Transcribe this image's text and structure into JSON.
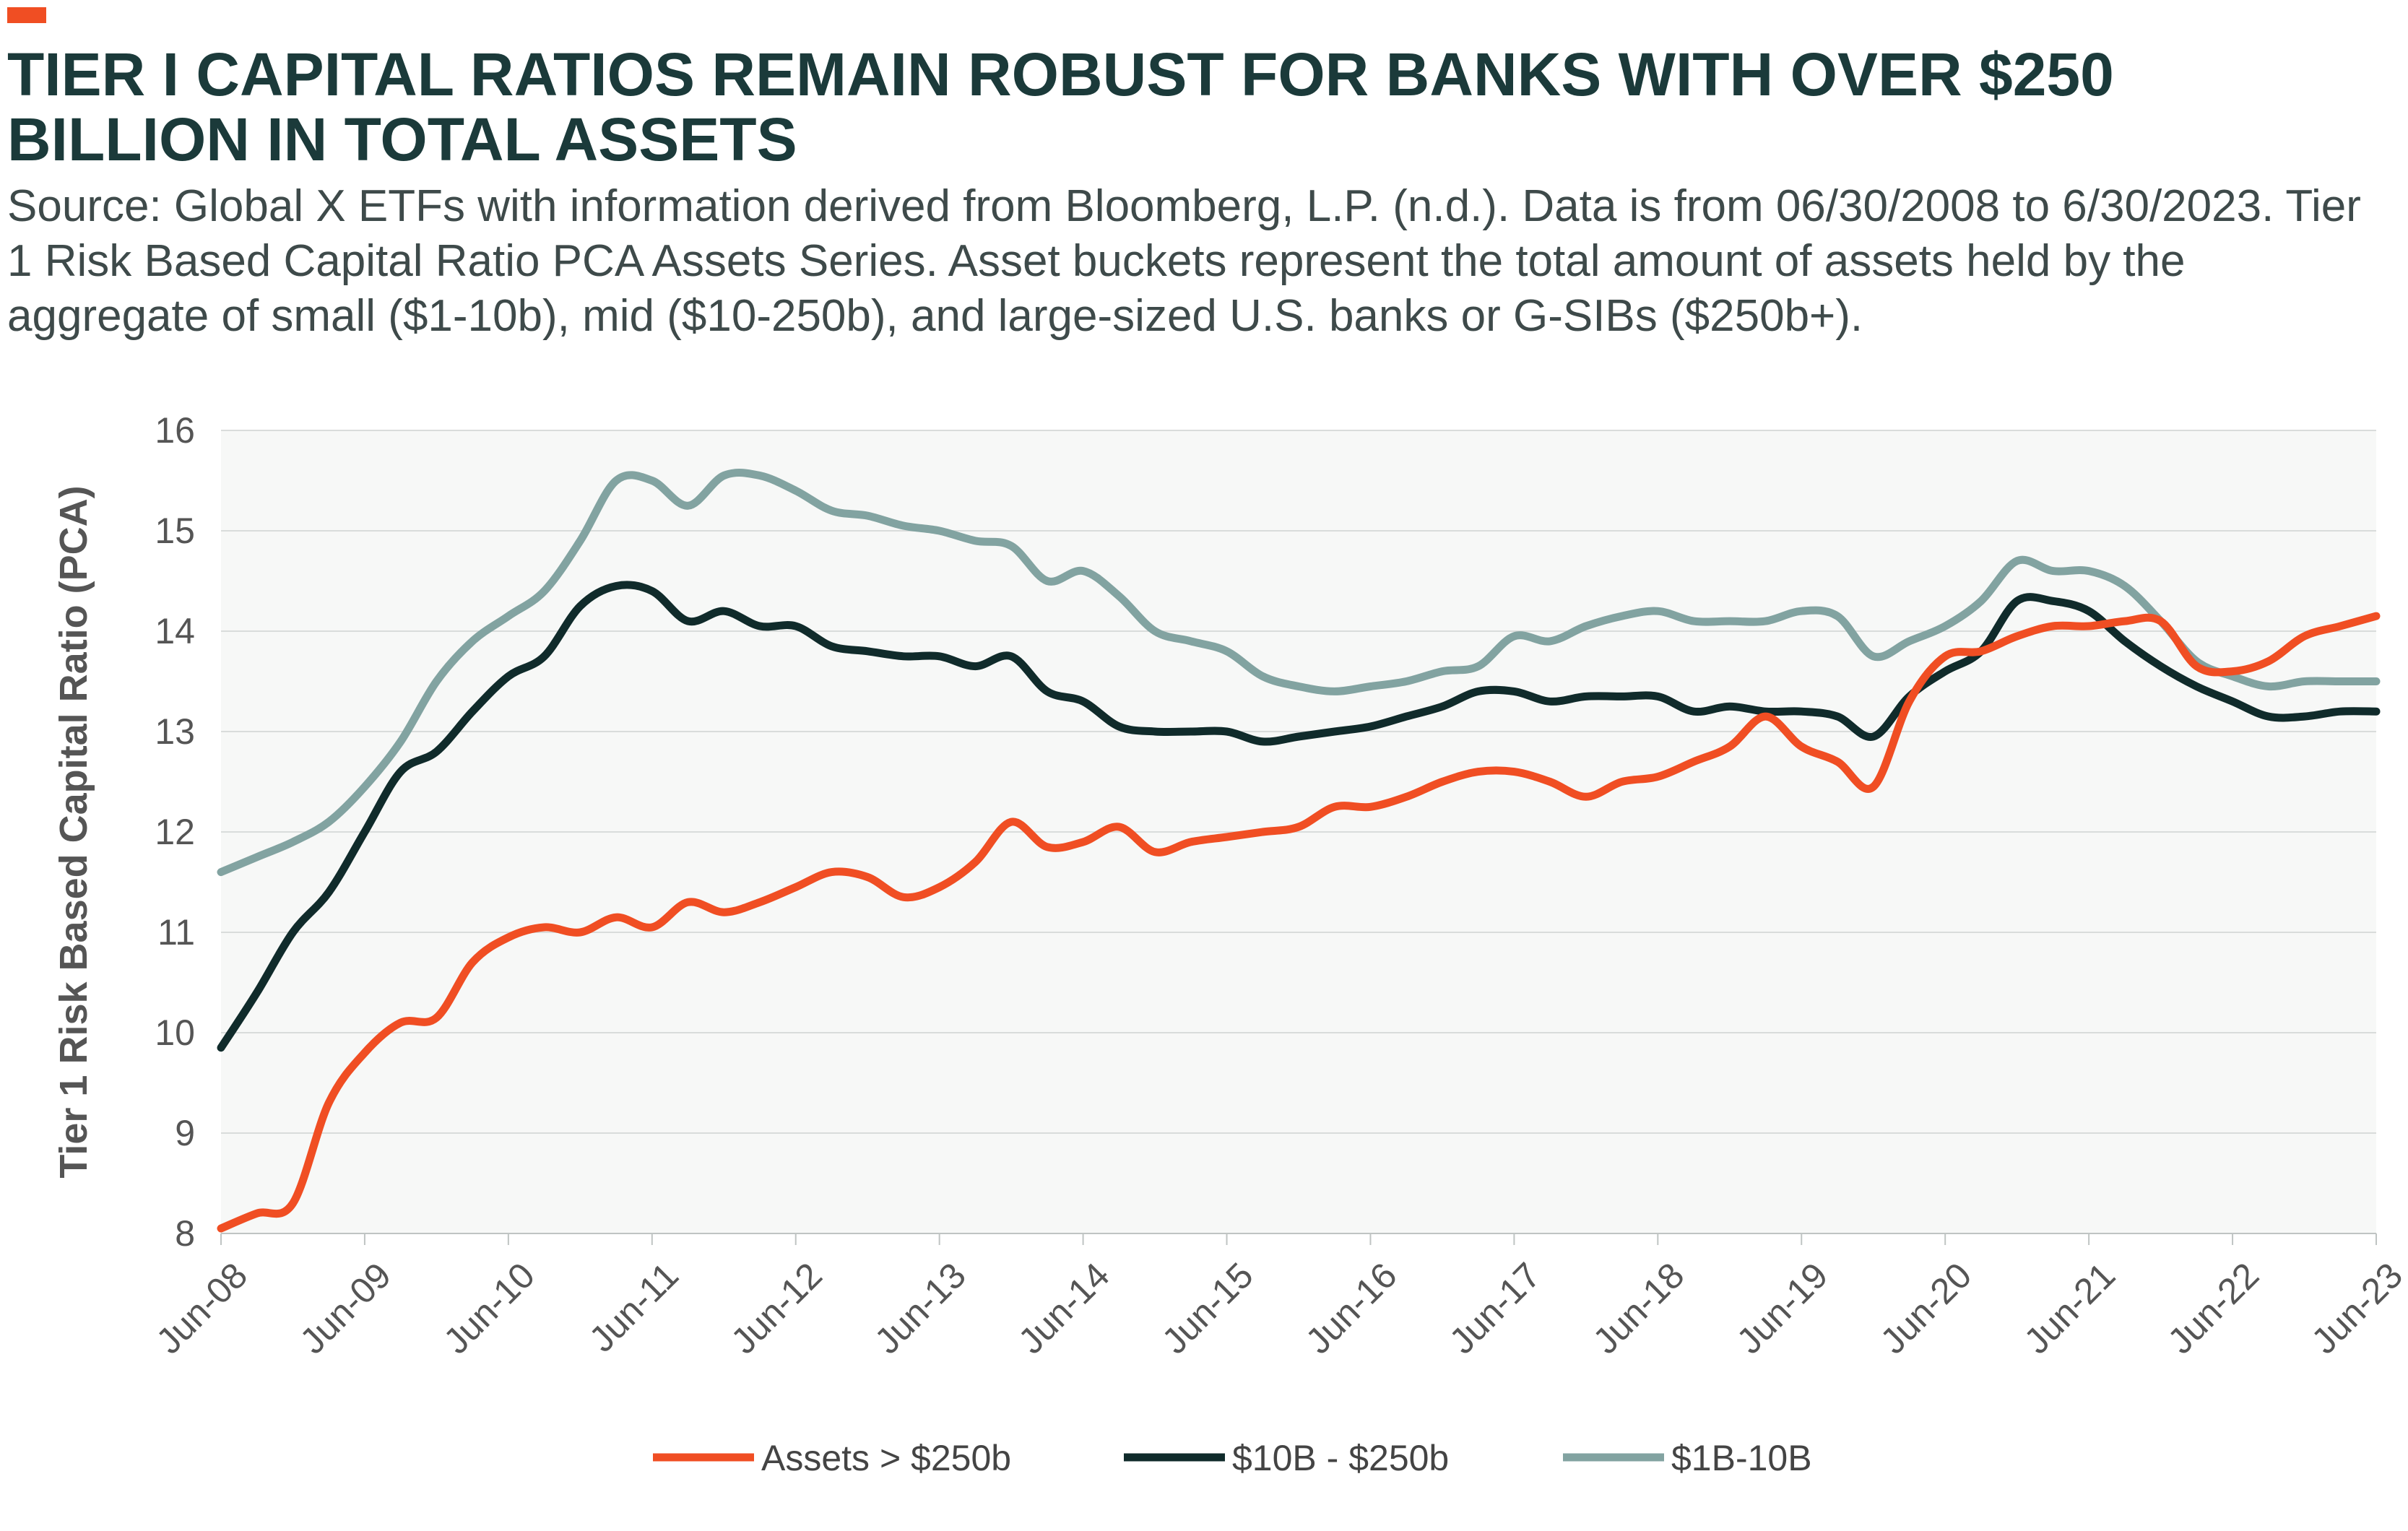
{
  "header": {
    "title": "TIER I CAPITAL RATIOS REMAIN ROBUST FOR BANKS WITH OVER $250 BILLION IN TOTAL ASSETS",
    "subtitle": "Source: Global X ETFs with information derived from Bloomberg, L.P. (n.d.). Data is from 06/30/2008 to 6/30/2023. Tier 1 Risk Based Capital Ratio PCA Assets Series. Asset buckets represent the total amount of assets held by the aggregate of small ($1-10b), mid ($10-250b), and large-sized U.S. banks or G-SIBs ($250b+)."
  },
  "colors": {
    "accent": "#f04e23",
    "plot_background": "#f7f8f7",
    "grid": "#d9dcdb"
  },
  "chart_data": {
    "type": "line",
    "ylabel": "Tier 1 Risk Based Capital Ratio (PCA)",
    "xlabel": "",
    "ylim": [
      8,
      16
    ],
    "yticks": [
      "8",
      "9",
      "10",
      "11",
      "12",
      "13",
      "14",
      "15",
      "16"
    ],
    "xlim": [
      "2008-06",
      "2023-06"
    ],
    "xticks": [
      "Jun-08",
      "Jun-09",
      "Jun-10",
      "Jun-11",
      "Jun-12",
      "Jun-13",
      "Jun-14",
      "Jun-15",
      "Jun-16",
      "Jun-17",
      "Jun-18",
      "Jun-19",
      "Jun-20",
      "Jun-21",
      "Jun-22",
      "Jun-23"
    ],
    "grid": "horizontal",
    "legend_position": "bottom",
    "series": [
      {
        "name": "Assets > $250b",
        "color": "#f04e23",
        "x": [
          "2008-06",
          "2008-09",
          "2008-12",
          "2009-03",
          "2009-06",
          "2009-09",
          "2009-12",
          "2010-03",
          "2010-06",
          "2010-09",
          "2010-12",
          "2011-03",
          "2011-06",
          "2011-09",
          "2011-12",
          "2012-03",
          "2012-06",
          "2012-09",
          "2012-12",
          "2013-03",
          "2013-06",
          "2013-09",
          "2013-12",
          "2014-03",
          "2014-06",
          "2014-09",
          "2014-12",
          "2015-03",
          "2015-06",
          "2015-09",
          "2015-12",
          "2016-03",
          "2016-06",
          "2016-09",
          "2016-12",
          "2017-03",
          "2017-06",
          "2017-09",
          "2017-12",
          "2018-03",
          "2018-06",
          "2018-09",
          "2018-12",
          "2019-03",
          "2019-06",
          "2019-09",
          "2019-12",
          "2020-03",
          "2020-06",
          "2020-09",
          "2020-12",
          "2021-03",
          "2021-06",
          "2021-09",
          "2021-12",
          "2022-03",
          "2022-06",
          "2022-09",
          "2022-12",
          "2023-03",
          "2023-06"
        ],
        "values": [
          8.05,
          8.2,
          8.3,
          9.3,
          9.8,
          10.1,
          10.15,
          10.7,
          10.95,
          11.05,
          11.0,
          11.15,
          11.05,
          11.3,
          11.2,
          11.3,
          11.45,
          11.6,
          11.55,
          11.35,
          11.45,
          11.7,
          12.1,
          11.85,
          11.9,
          12.05,
          11.8,
          11.9,
          11.95,
          12.0,
          12.05,
          12.25,
          12.25,
          12.35,
          12.5,
          12.6,
          12.6,
          12.5,
          12.35,
          12.5,
          12.55,
          12.7,
          12.85,
          13.15,
          12.85,
          12.7,
          12.45,
          13.3,
          13.75,
          13.8,
          13.95,
          14.05,
          14.05,
          14.1,
          14.1,
          13.65,
          13.6,
          13.7,
          13.95,
          14.05,
          14.15
        ]
      },
      {
        "name": "$10B - $250b",
        "color": "#102b2b",
        "x": [
          "2008-06",
          "2008-09",
          "2008-12",
          "2009-03",
          "2009-06",
          "2009-09",
          "2009-12",
          "2010-03",
          "2010-06",
          "2010-09",
          "2010-12",
          "2011-03",
          "2011-06",
          "2011-09",
          "2011-12",
          "2012-03",
          "2012-06",
          "2012-09",
          "2012-12",
          "2013-03",
          "2013-06",
          "2013-09",
          "2013-12",
          "2014-03",
          "2014-06",
          "2014-09",
          "2014-12",
          "2015-03",
          "2015-06",
          "2015-09",
          "2015-12",
          "2016-03",
          "2016-06",
          "2016-09",
          "2016-12",
          "2017-03",
          "2017-06",
          "2017-09",
          "2017-12",
          "2018-03",
          "2018-06",
          "2018-09",
          "2018-12",
          "2019-03",
          "2019-06",
          "2019-09",
          "2019-12",
          "2020-03",
          "2020-06",
          "2020-09",
          "2020-12",
          "2021-03",
          "2021-06",
          "2021-09",
          "2021-12",
          "2022-03",
          "2022-06",
          "2022-09",
          "2022-12",
          "2023-03",
          "2023-06"
        ],
        "values": [
          9.85,
          10.4,
          11.0,
          11.4,
          12.0,
          12.6,
          12.8,
          13.2,
          13.55,
          13.75,
          14.25,
          14.45,
          14.4,
          14.1,
          14.2,
          14.05,
          14.05,
          13.85,
          13.8,
          13.75,
          13.75,
          13.65,
          13.75,
          13.4,
          13.3,
          13.05,
          13.0,
          13.0,
          13.0,
          12.9,
          12.95,
          13.0,
          13.05,
          13.15,
          13.25,
          13.4,
          13.4,
          13.3,
          13.35,
          13.35,
          13.35,
          13.2,
          13.25,
          13.2,
          13.2,
          13.15,
          12.95,
          13.35,
          13.6,
          13.8,
          14.3,
          14.3,
          14.2,
          13.9,
          13.65,
          13.45,
          13.3,
          13.15,
          13.15,
          13.2,
          13.2
        ]
      },
      {
        "name": "$1B-10B",
        "color": "#82a3a1",
        "x": [
          "2008-06",
          "2008-09",
          "2008-12",
          "2009-03",
          "2009-06",
          "2009-09",
          "2009-12",
          "2010-03",
          "2010-06",
          "2010-09",
          "2010-12",
          "2011-03",
          "2011-06",
          "2011-09",
          "2011-12",
          "2012-03",
          "2012-06",
          "2012-09",
          "2012-12",
          "2013-03",
          "2013-06",
          "2013-09",
          "2013-12",
          "2014-03",
          "2014-06",
          "2014-09",
          "2014-12",
          "2015-03",
          "2015-06",
          "2015-09",
          "2015-12",
          "2016-03",
          "2016-06",
          "2016-09",
          "2016-12",
          "2017-03",
          "2017-06",
          "2017-09",
          "2017-12",
          "2018-03",
          "2018-06",
          "2018-09",
          "2018-12",
          "2019-03",
          "2019-06",
          "2019-09",
          "2019-12",
          "2020-03",
          "2020-06",
          "2020-09",
          "2020-12",
          "2021-03",
          "2021-06",
          "2021-09",
          "2021-12",
          "2022-03",
          "2022-06",
          "2022-09",
          "2022-12",
          "2023-03",
          "2023-06"
        ],
        "values": [
          11.6,
          11.75,
          11.9,
          12.1,
          12.45,
          12.9,
          13.5,
          13.9,
          14.15,
          14.4,
          14.9,
          15.5,
          15.5,
          15.25,
          15.55,
          15.55,
          15.4,
          15.2,
          15.15,
          15.05,
          15.0,
          14.9,
          14.85,
          14.5,
          14.6,
          14.35,
          14.0,
          13.9,
          13.8,
          13.55,
          13.45,
          13.4,
          13.45,
          13.5,
          13.6,
          13.65,
          13.95,
          13.9,
          14.05,
          14.15,
          14.2,
          14.1,
          14.1,
          14.1,
          14.2,
          14.15,
          13.75,
          13.9,
          14.05,
          14.3,
          14.7,
          14.6,
          14.6,
          14.45,
          14.1,
          13.7,
          13.55,
          13.45,
          13.5,
          13.5,
          13.5
        ]
      }
    ]
  }
}
